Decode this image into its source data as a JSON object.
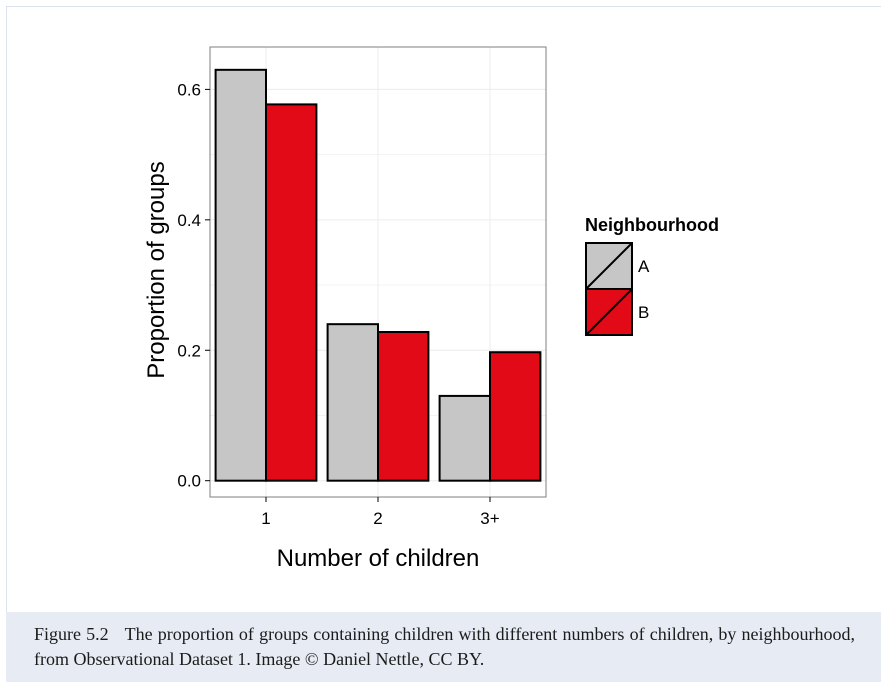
{
  "chart_data": {
    "type": "bar",
    "categories": [
      "1",
      "2",
      "3+"
    ],
    "series": [
      {
        "name": "A",
        "values": [
          0.63,
          0.24,
          0.13
        ]
      },
      {
        "name": "B",
        "values": [
          0.577,
          0.228,
          0.197
        ]
      }
    ],
    "xlabel": "Number of children",
    "ylabel": "Proportion of groups",
    "ylim": [
      -0.025,
      0.665
    ],
    "yticks": [
      0.0,
      0.2,
      0.4,
      0.6
    ],
    "ytick_labels": [
      "0.0",
      "0.2",
      "0.4",
      "0.6"
    ],
    "legend": {
      "title": "Neighbourhood",
      "placement": "right"
    },
    "grid": true
  },
  "colors": {
    "A": "#c6c6c6",
    "B": "#e20a16",
    "gridline": "#ececec",
    "axis_frame": "#7f7f7f"
  },
  "caption": {
    "label": "Figure 5.2",
    "text": "The proportion of groups containing children with different numbers of children, by neighbourhood, from Observational Dataset 1. Image © Daniel Nettle, CC BY."
  }
}
